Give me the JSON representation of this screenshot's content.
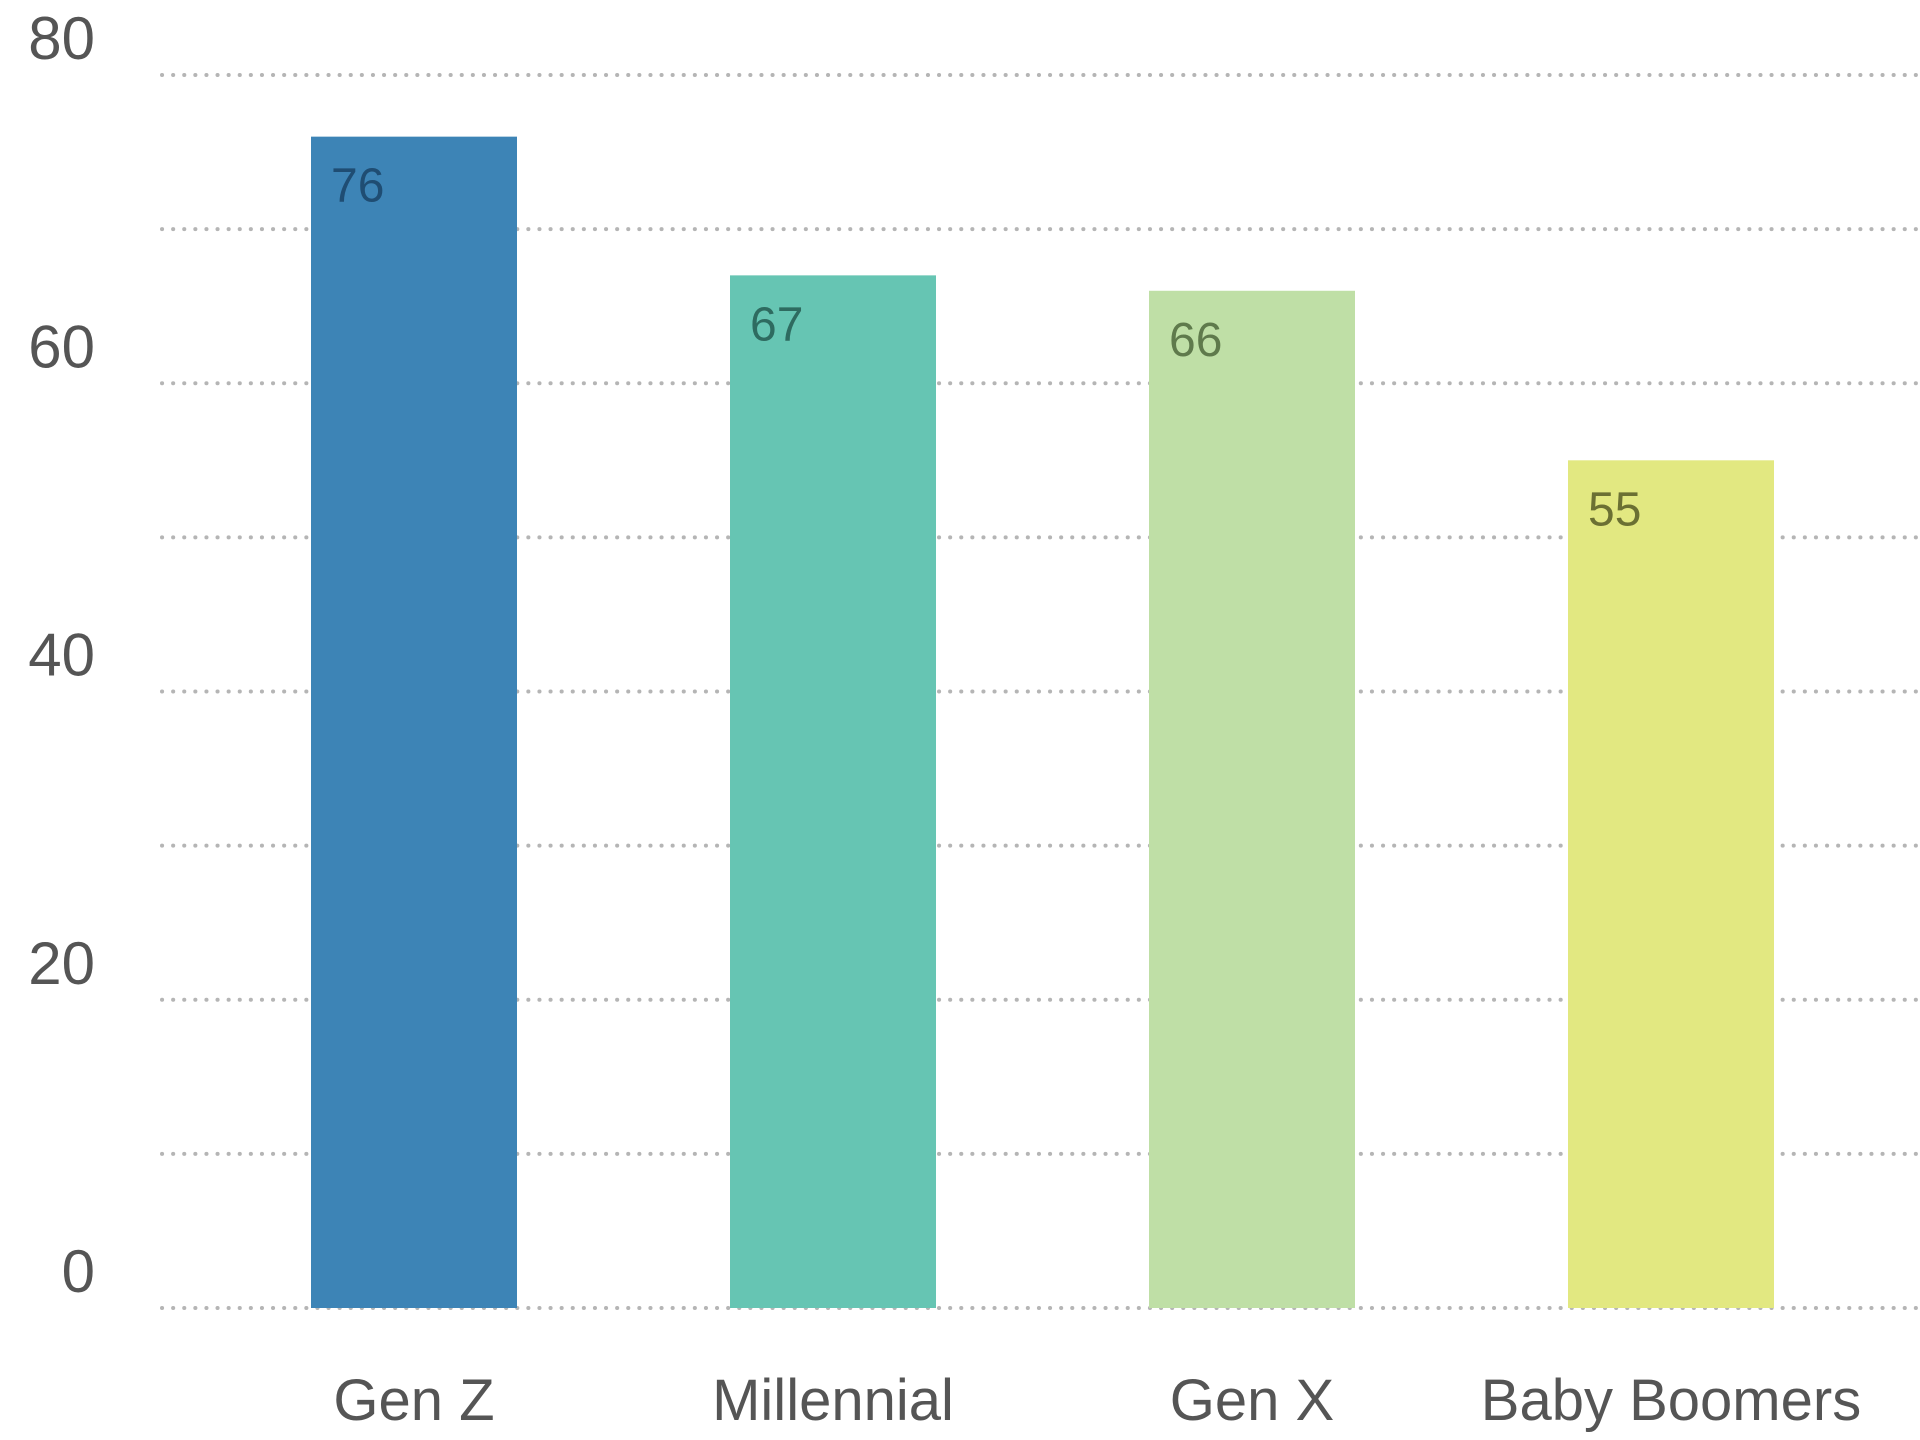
{
  "chart_data": {
    "type": "bar",
    "title": "",
    "xlabel": "",
    "ylabel": "",
    "categories": [
      "Gen Z",
      "Millennial",
      "Gen X",
      "Baby Boomers"
    ],
    "values": [
      76,
      67,
      66,
      55
    ],
    "value_labels": [
      "76",
      "67",
      "66",
      "55"
    ],
    "ylim": [
      0,
      80
    ],
    "yticks": [
      0,
      20,
      40,
      60,
      80
    ],
    "ytick_labels": [
      "0",
      "20",
      "40",
      "60",
      "80"
    ],
    "minor_gridlines": [
      10,
      30,
      50,
      70
    ],
    "grid": "dotted horizontal",
    "legend": "none",
    "colors": [
      "#3d84b6",
      "#66c5b3",
      "#bfdfa6",
      "#e2e881"
    ],
    "label_colors": [
      "#1f4d73",
      "#2e6b60",
      "#5f7a4c",
      "#6b7033"
    ]
  }
}
